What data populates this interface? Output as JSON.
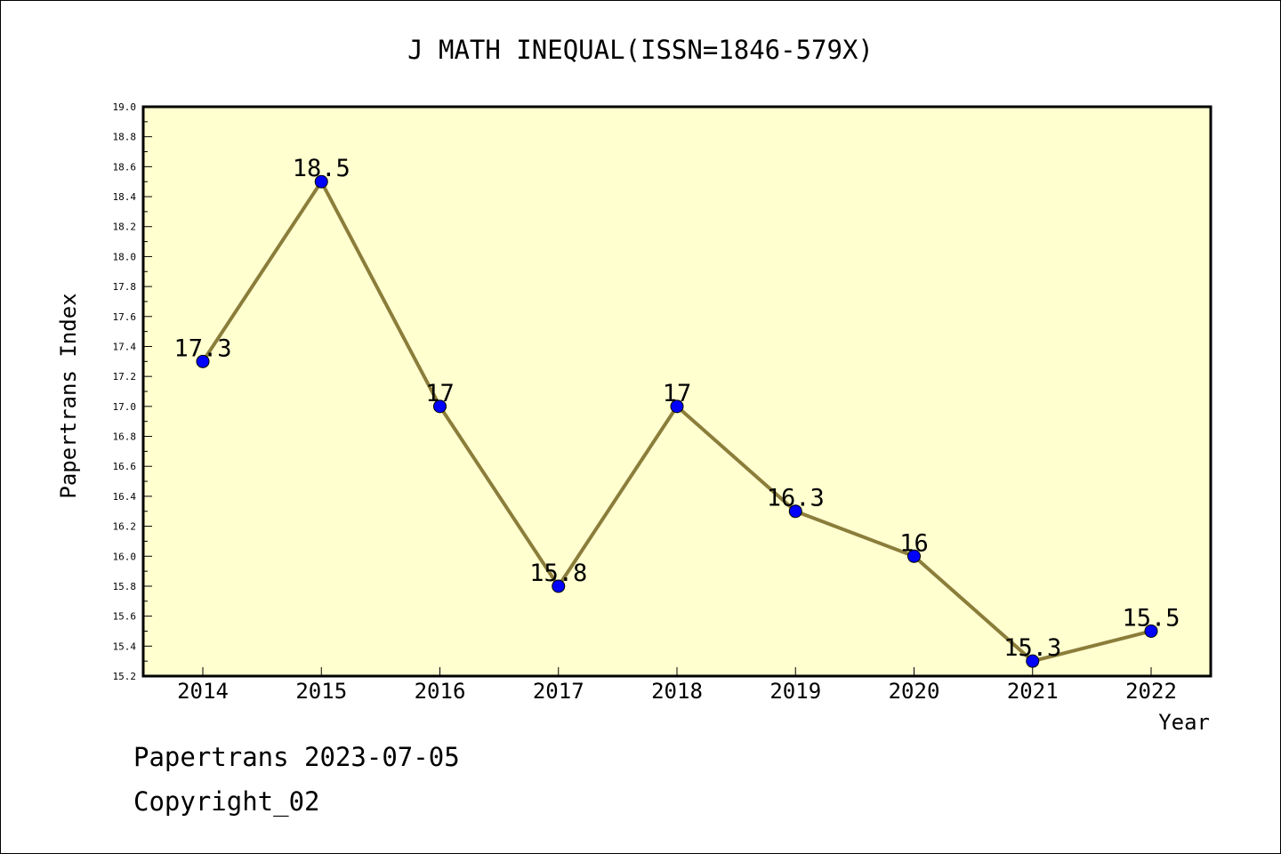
{
  "chart_data": {
    "type": "line",
    "title": "J MATH INEQUAL(ISSN=1846-579X)",
    "xlabel": "Year",
    "ylabel": "Papertrans Index",
    "categories": [
      "2014",
      "2015",
      "2016",
      "2017",
      "2018",
      "2019",
      "2020",
      "2021",
      "2022"
    ],
    "series": [
      {
        "values": [
          17.3,
          18.5,
          17.0,
          15.8,
          17.0,
          16.3,
          16.0,
          15.3,
          15.5
        ],
        "data_labels": [
          "17.3",
          "18.5",
          "17",
          "15.8",
          "17",
          "16.3",
          "16",
          "15.3",
          "15.5"
        ]
      }
    ],
    "ylim": [
      15.2,
      19.0
    ],
    "y_ticks": [
      "15.2",
      "15.4",
      "15.6",
      "15.8",
      "16.0",
      "16.2",
      "16.4",
      "16.6",
      "16.8",
      "17.0",
      "17.2",
      "17.4",
      "17.6",
      "17.8",
      "18.0",
      "18.2",
      "18.4",
      "18.6",
      "18.8",
      "19.0"
    ],
    "grid": false,
    "legend": "none",
    "colors": {
      "plot_background": "#ffffd0",
      "line": "#8b7d3a",
      "marker": "#0000ff"
    }
  },
  "footer": {
    "line1": "Papertrans 2023-07-05",
    "line2": "Copyright_02"
  }
}
